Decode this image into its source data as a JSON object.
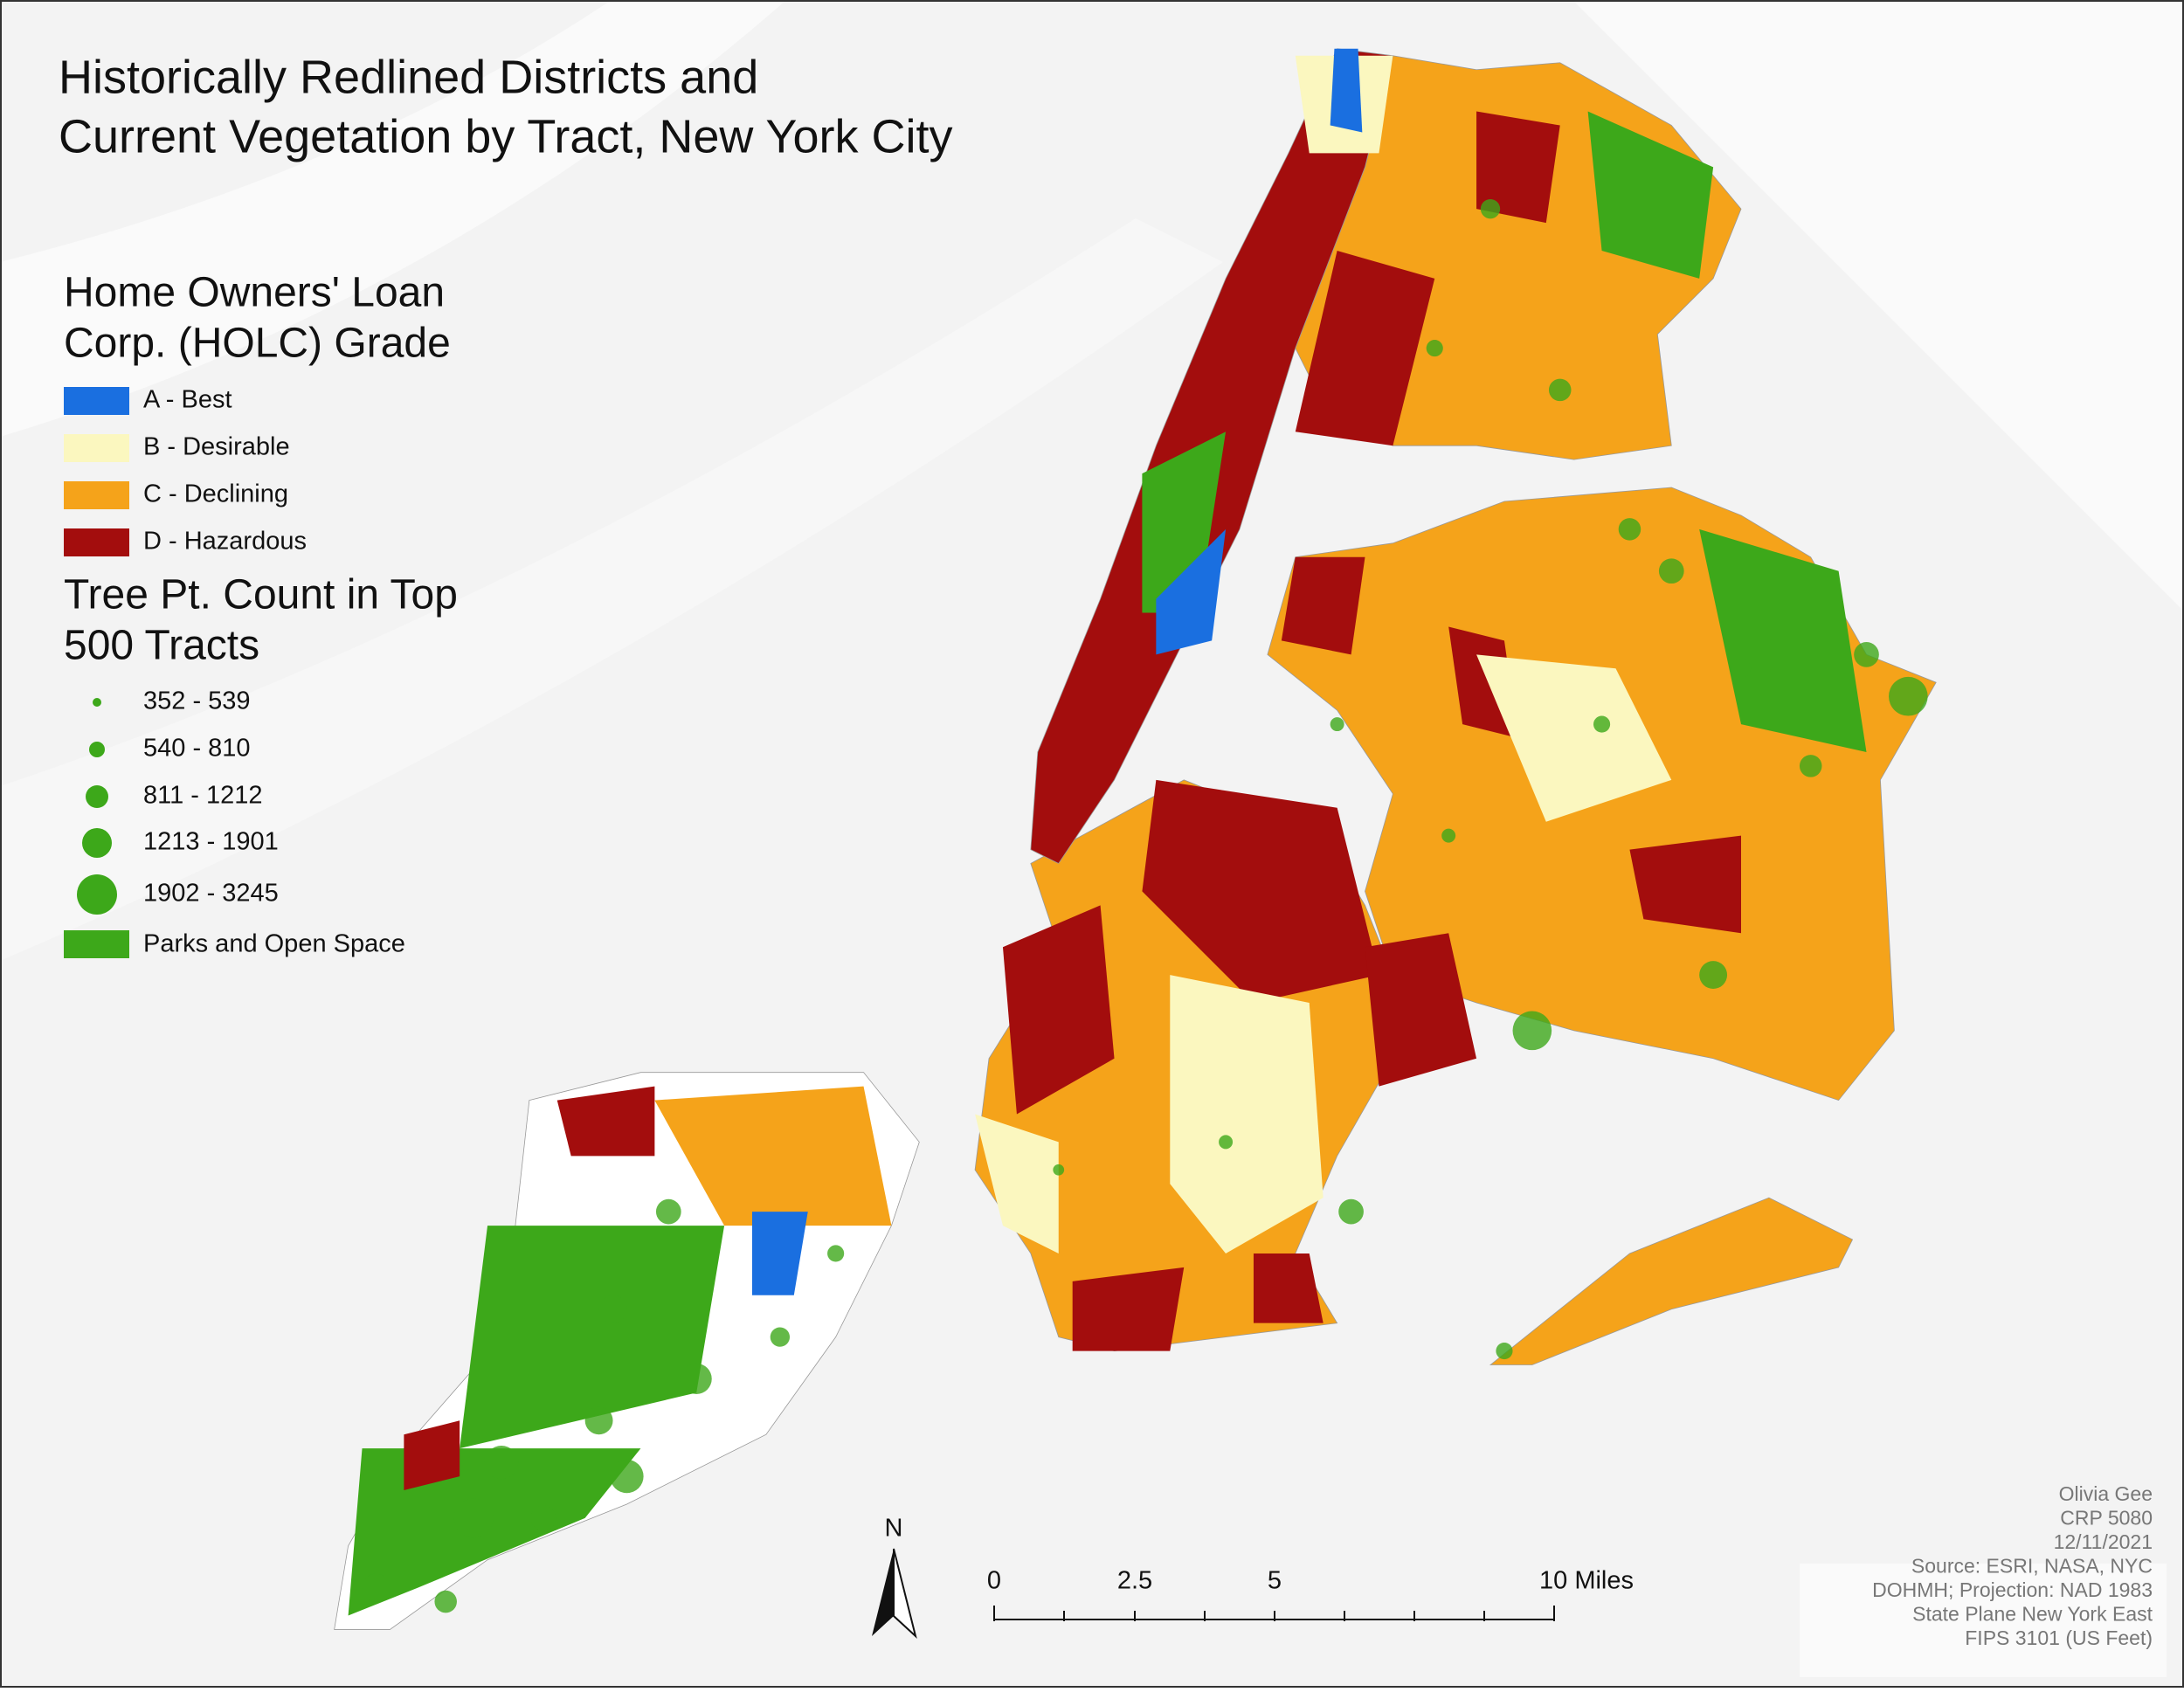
{
  "title": {
    "line1": "Historically Redlined Districts and",
    "line2": "Current Vegetation by Tract, New York City"
  },
  "legend": {
    "holc_heading": {
      "line1": "Home Owners' Loan",
      "line2": "Corp. (HOLC) Grade"
    },
    "holc_items": [
      "A - Best",
      "B - Desirable",
      "C - Declining",
      "D - Hazardous"
    ],
    "tree_heading": {
      "line1": "Tree Pt. Count in Top",
      "line2": "500 Tracts"
    },
    "tree_items": [
      "352 - 539",
      "540 - 810",
      "811 - 1212",
      "1213 - 1901",
      "1902 - 3245"
    ],
    "parks": "Parks and Open Space"
  },
  "north_arrow": "N",
  "scale_bar": {
    "labels": [
      "0",
      "2.5",
      "5",
      "10 Miles"
    ]
  },
  "credits": [
    "Olivia Gee",
    "CRP 5080",
    "12/11/2021",
    "Source: ESRI,  NASA, NYC",
    "DOHMH; Projection: NAD 1983",
    "State Plane New York East",
    "FIPS 3101 (US Feet)"
  ]
}
